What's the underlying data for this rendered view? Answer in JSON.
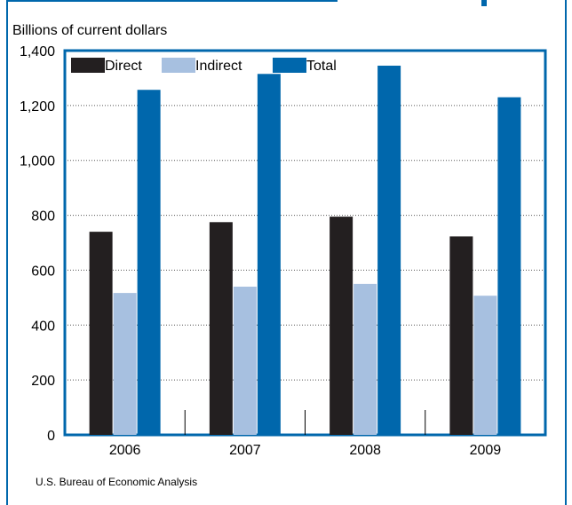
{
  "chart_data": {
    "type": "bar",
    "title": "",
    "ylabel": "Billions of current dollars",
    "xlabel": "",
    "categories": [
      "2006",
      "2007",
      "2008",
      "2009"
    ],
    "series": [
      {
        "name": "Direct",
        "values": [
          740,
          775,
          795,
          723
        ],
        "color": "#231f20"
      },
      {
        "name": "Indirect",
        "values": [
          517,
          540,
          550,
          507
        ],
        "color": "#a7c0e0"
      },
      {
        "name": "Total",
        "values": [
          1257,
          1315,
          1345,
          1230
        ],
        "color": "#0067ac"
      }
    ],
    "ylim": [
      0,
      1400
    ],
    "yticks": [
      0,
      200,
      400,
      600,
      800,
      1000,
      1200,
      1400
    ],
    "ytick_labels": [
      "0",
      "200",
      "400",
      "600",
      "800",
      "1,000",
      "1,200",
      "1,400"
    ],
    "grid": true,
    "legend_position": "top-left",
    "source": "U.S. Bureau of Economic Analysis"
  }
}
